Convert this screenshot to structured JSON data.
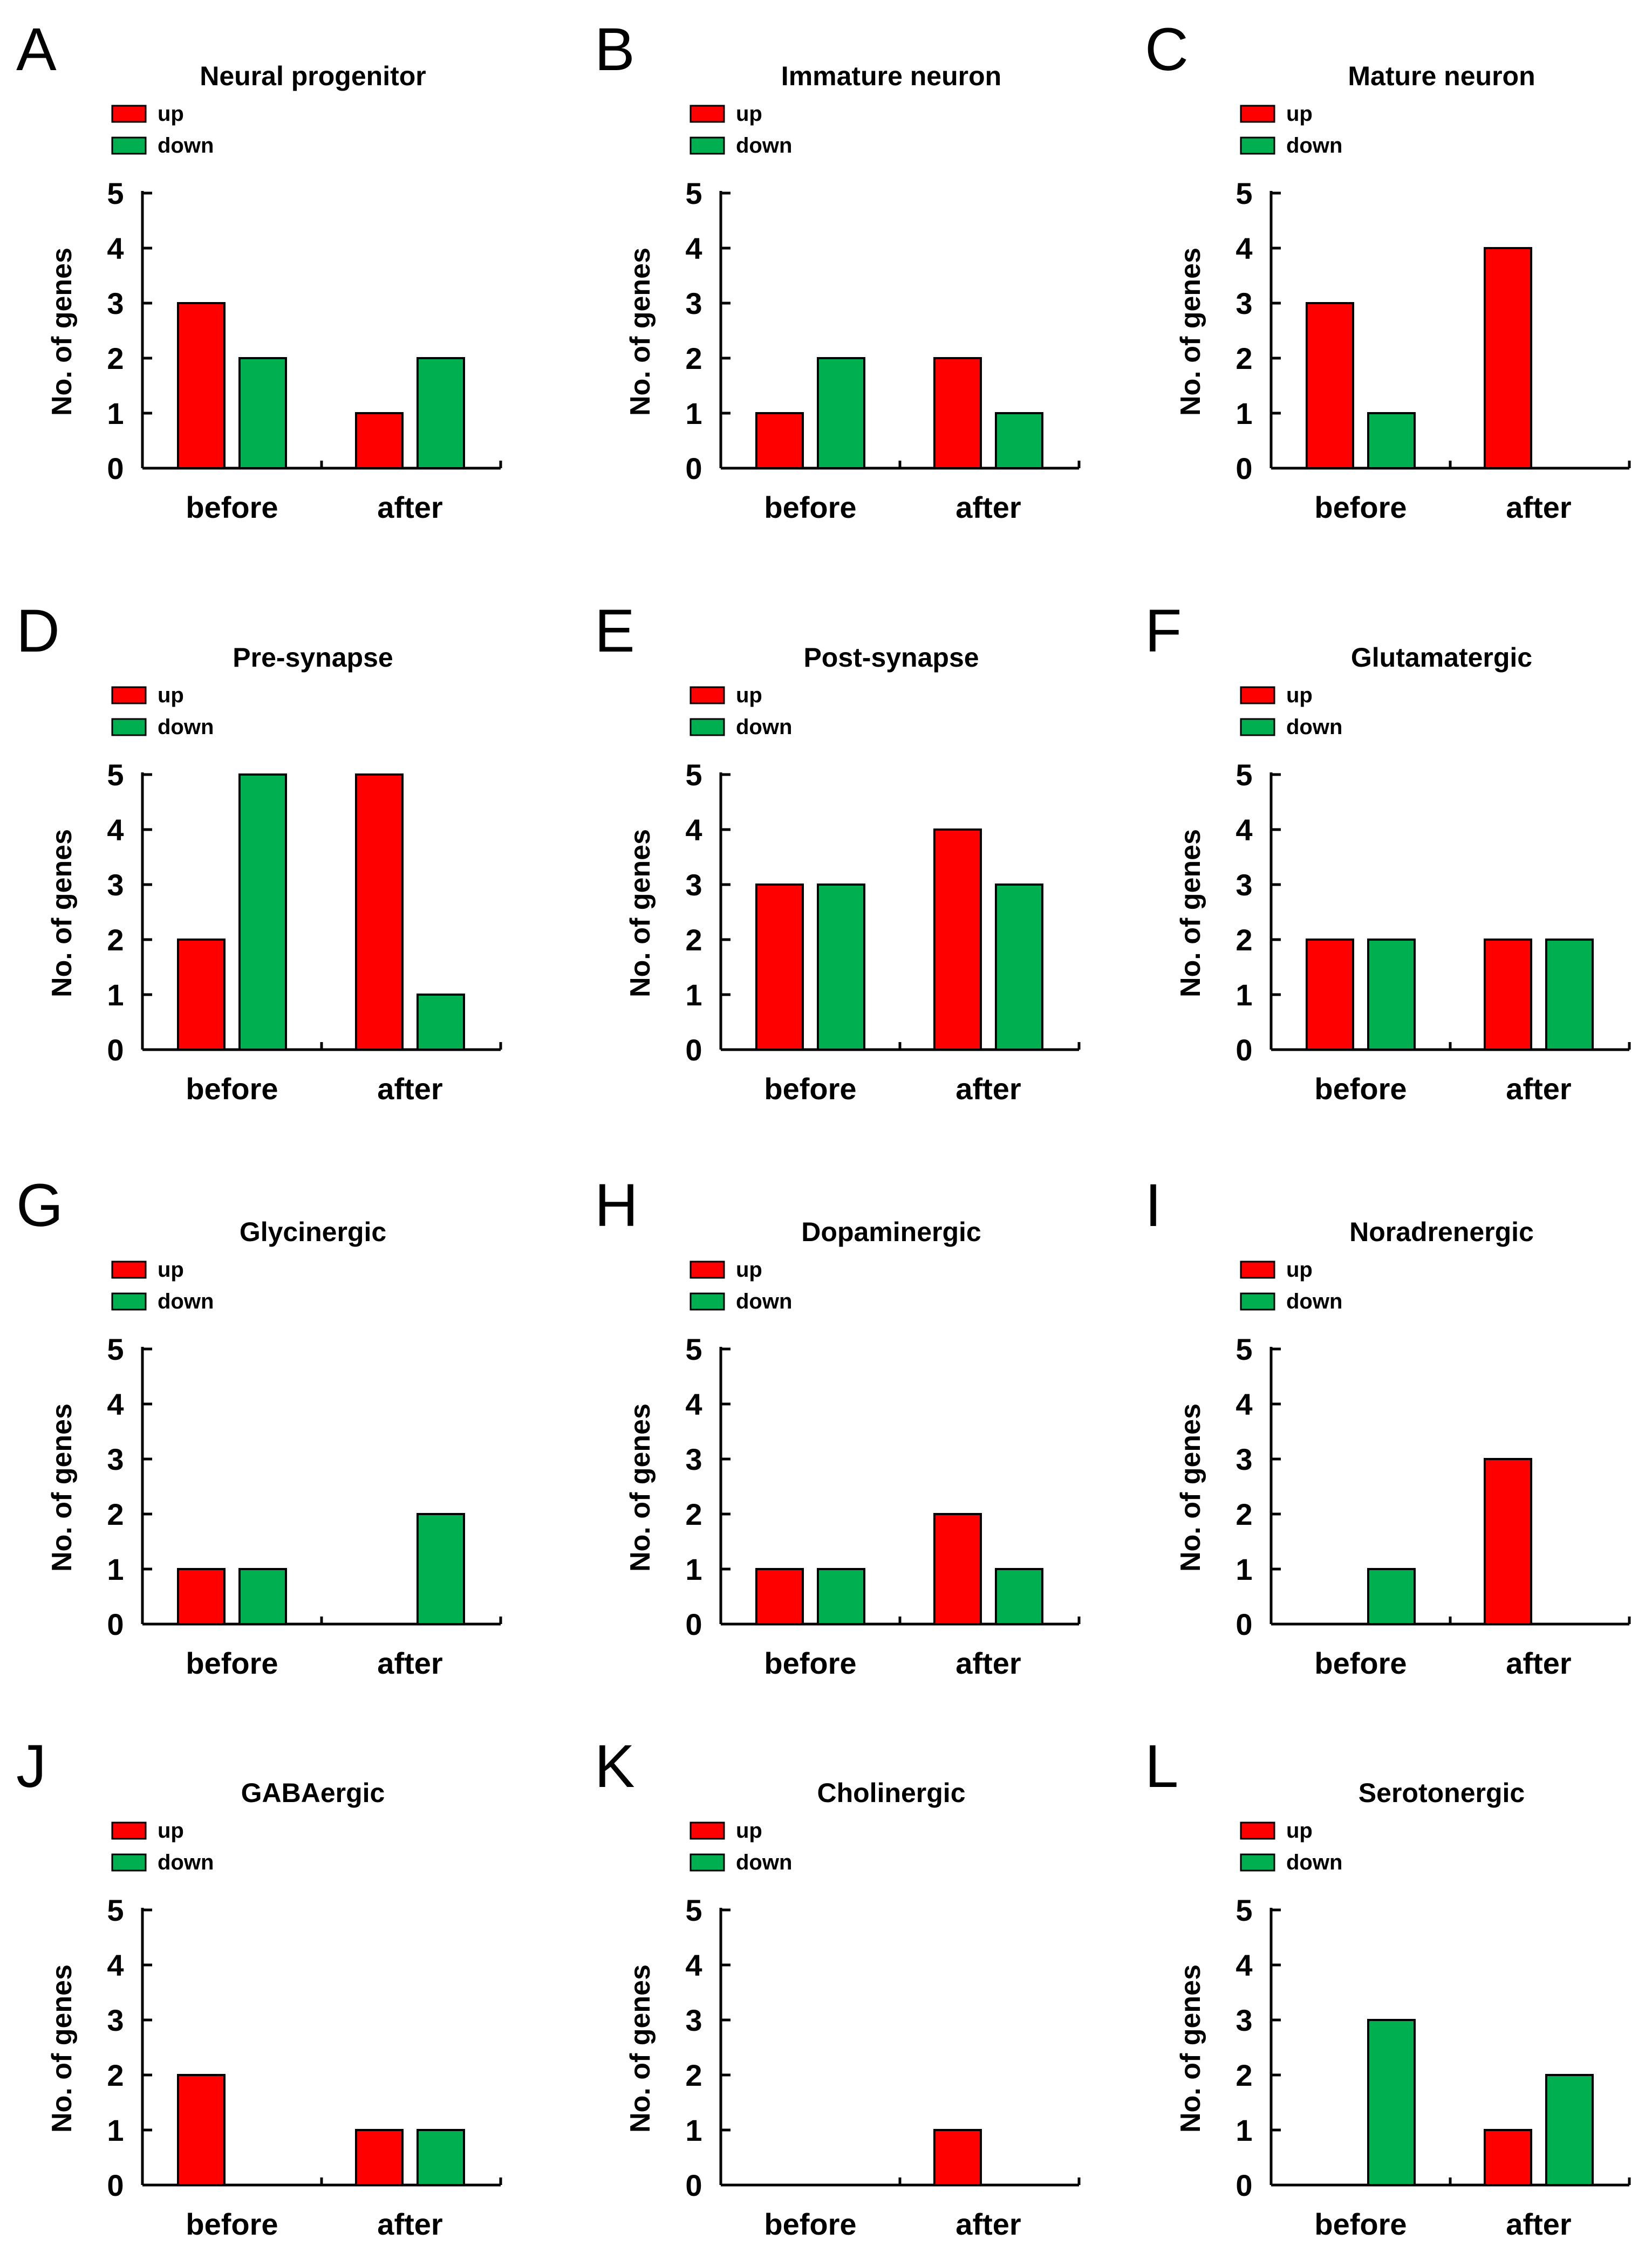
{
  "colors": {
    "up": "#ff0000",
    "down": "#00b050",
    "axis": "#000000"
  },
  "chart_data": [
    {
      "letter": "A",
      "type": "bar",
      "title": "Neural progenitor",
      "categories": [
        "before",
        "after"
      ],
      "ylabel": "No. of genes",
      "ylim": [
        0,
        5
      ],
      "yticks": [
        "0",
        "1",
        "2",
        "3",
        "4",
        "5"
      ],
      "legend": "top-left",
      "series": [
        {
          "name": "up",
          "values": [
            3,
            1
          ]
        },
        {
          "name": "down",
          "values": [
            2,
            2
          ]
        }
      ]
    },
    {
      "letter": "B",
      "type": "bar",
      "title": "Immature neuron",
      "categories": [
        "before",
        "after"
      ],
      "ylabel": "No. of genes",
      "ylim": [
        0,
        5
      ],
      "yticks": [
        "0",
        "1",
        "2",
        "3",
        "4",
        "5"
      ],
      "legend": "top-left",
      "series": [
        {
          "name": "up",
          "values": [
            1,
            2
          ]
        },
        {
          "name": "down",
          "values": [
            2,
            1
          ]
        }
      ]
    },
    {
      "letter": "C",
      "type": "bar",
      "title": "Mature neuron",
      "categories": [
        "before",
        "after"
      ],
      "ylabel": "No. of genes",
      "ylim": [
        0,
        5
      ],
      "yticks": [
        "0",
        "1",
        "2",
        "3",
        "4",
        "5"
      ],
      "legend": "top-left",
      "series": [
        {
          "name": "up",
          "values": [
            3,
            4
          ]
        },
        {
          "name": "down",
          "values": [
            1,
            0
          ]
        }
      ]
    },
    {
      "letter": "D",
      "type": "bar",
      "title": "Pre-synapse",
      "categories": [
        "before",
        "after"
      ],
      "ylabel": "No. of genes",
      "ylim": [
        0,
        5
      ],
      "yticks": [
        "0",
        "1",
        "2",
        "3",
        "4",
        "5"
      ],
      "legend": "top-left",
      "series": [
        {
          "name": "up",
          "values": [
            2,
            5
          ]
        },
        {
          "name": "down",
          "values": [
            5,
            1
          ]
        }
      ]
    },
    {
      "letter": "E",
      "type": "bar",
      "title": "Post-synapse",
      "categories": [
        "before",
        "after"
      ],
      "ylabel": "No. of genes",
      "ylim": [
        0,
        5
      ],
      "yticks": [
        "0",
        "1",
        "2",
        "3",
        "4",
        "5"
      ],
      "legend": "top-left",
      "series": [
        {
          "name": "up",
          "values": [
            3,
            4
          ]
        },
        {
          "name": "down",
          "values": [
            3,
            3
          ]
        }
      ]
    },
    {
      "letter": "F",
      "type": "bar",
      "title": "Glutamatergic",
      "categories": [
        "before",
        "after"
      ],
      "ylabel": "No. of genes",
      "ylim": [
        0,
        5
      ],
      "yticks": [
        "0",
        "1",
        "2",
        "3",
        "4",
        "5"
      ],
      "legend": "top-left",
      "series": [
        {
          "name": "up",
          "values": [
            2,
            2
          ]
        },
        {
          "name": "down",
          "values": [
            2,
            2
          ]
        }
      ]
    },
    {
      "letter": "G",
      "type": "bar",
      "title": "Glycinergic",
      "categories": [
        "before",
        "after"
      ],
      "ylabel": "No. of genes",
      "ylim": [
        0,
        5
      ],
      "yticks": [
        "0",
        "1",
        "2",
        "3",
        "4",
        "5"
      ],
      "legend": "top-left",
      "series": [
        {
          "name": "up",
          "values": [
            1,
            0
          ]
        },
        {
          "name": "down",
          "values": [
            1,
            2
          ]
        }
      ]
    },
    {
      "letter": "H",
      "type": "bar",
      "title": "Dopaminergic",
      "categories": [
        "before",
        "after"
      ],
      "ylabel": "No. of genes",
      "ylim": [
        0,
        5
      ],
      "yticks": [
        "0",
        "1",
        "2",
        "3",
        "4",
        "5"
      ],
      "legend": "top-left",
      "series": [
        {
          "name": "up",
          "values": [
            1,
            2
          ]
        },
        {
          "name": "down",
          "values": [
            1,
            1
          ]
        }
      ]
    },
    {
      "letter": "I",
      "type": "bar",
      "title": "Noradrenergic",
      "categories": [
        "before",
        "after"
      ],
      "ylabel": "No. of genes",
      "ylim": [
        0,
        5
      ],
      "yticks": [
        "0",
        "1",
        "2",
        "3",
        "4",
        "5"
      ],
      "legend": "top-left",
      "series": [
        {
          "name": "up",
          "values": [
            0,
            3
          ]
        },
        {
          "name": "down",
          "values": [
            1,
            0
          ]
        }
      ]
    },
    {
      "letter": "J",
      "type": "bar",
      "title": "GABAergic",
      "categories": [
        "before",
        "after"
      ],
      "ylabel": "No. of genes",
      "ylim": [
        0,
        5
      ],
      "yticks": [
        "0",
        "1",
        "2",
        "3",
        "4",
        "5"
      ],
      "legend": "top-left",
      "series": [
        {
          "name": "up",
          "values": [
            2,
            1
          ]
        },
        {
          "name": "down",
          "values": [
            0,
            1
          ]
        }
      ]
    },
    {
      "letter": "K",
      "type": "bar",
      "title": "Cholinergic",
      "categories": [
        "before",
        "after"
      ],
      "ylabel": "No. of genes",
      "ylim": [
        0,
        5
      ],
      "yticks": [
        "0",
        "1",
        "2",
        "3",
        "4",
        "5"
      ],
      "legend": "top-left",
      "series": [
        {
          "name": "up",
          "values": [
            0,
            1
          ]
        },
        {
          "name": "down",
          "values": [
            0,
            0
          ]
        }
      ]
    },
    {
      "letter": "L",
      "type": "bar",
      "title": "Serotonergic",
      "categories": [
        "before",
        "after"
      ],
      "ylabel": "No. of genes",
      "ylim": [
        0,
        5
      ],
      "yticks": [
        "0",
        "1",
        "2",
        "3",
        "4",
        "5"
      ],
      "legend": "top-left",
      "series": [
        {
          "name": "up",
          "values": [
            0,
            1
          ]
        },
        {
          "name": "down",
          "values": [
            3,
            2
          ]
        }
      ]
    }
  ]
}
